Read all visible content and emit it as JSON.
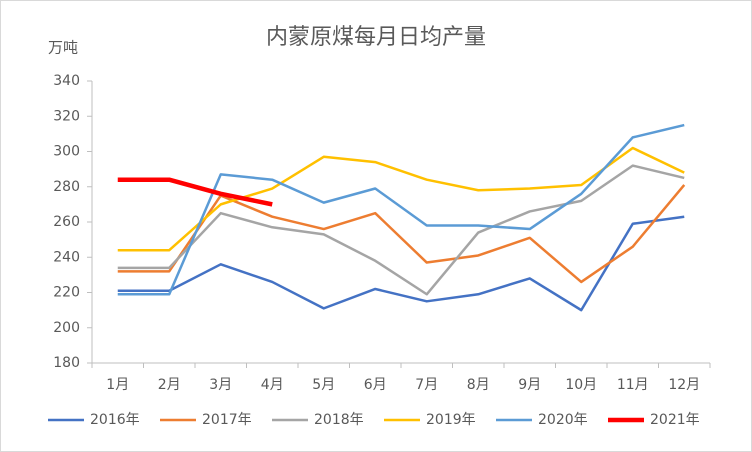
{
  "chart_data": {
    "type": "line",
    "title": "内蒙原煤每月日均产量",
    "y_label": "万吨",
    "categories": [
      "1月",
      "2月",
      "3月",
      "4月",
      "5月",
      "6月",
      "7月",
      "8月",
      "9月",
      "10月",
      "11月",
      "12月"
    ],
    "series": [
      {
        "name": "2016年",
        "color": "#4472c4",
        "values": [
          221,
          221,
          236,
          226,
          211,
          222,
          215,
          219,
          228,
          210,
          259,
          263
        ]
      },
      {
        "name": "2017年",
        "color": "#ed7d31",
        "values": [
          232,
          232,
          275,
          263,
          256,
          265,
          237,
          241,
          251,
          226,
          246,
          281
        ]
      },
      {
        "name": "2018年",
        "color": "#a5a5a5",
        "values": [
          234,
          234,
          265,
          257,
          253,
          238,
          219,
          254,
          266,
          272,
          292,
          285
        ]
      },
      {
        "name": "2019年",
        "color": "#ffc000",
        "values": [
          244,
          244,
          270,
          279,
          297,
          294,
          284,
          278,
          279,
          281,
          302,
          288
        ]
      },
      {
        "name": "2020年",
        "color": "#5b9bd5",
        "values": [
          219,
          219,
          287,
          284,
          271,
          279,
          258,
          258,
          256,
          276,
          308,
          315
        ]
      },
      {
        "name": "2021年",
        "color": "#ff0000",
        "values": [
          284,
          284,
          276,
          270,
          null,
          null,
          null,
          null,
          null,
          null,
          null,
          null
        ]
      }
    ],
    "ylim": [
      180,
      340
    ],
    "yticks": [
      180,
      200,
      220,
      240,
      260,
      280,
      300,
      320,
      340
    ],
    "grid": false
  }
}
